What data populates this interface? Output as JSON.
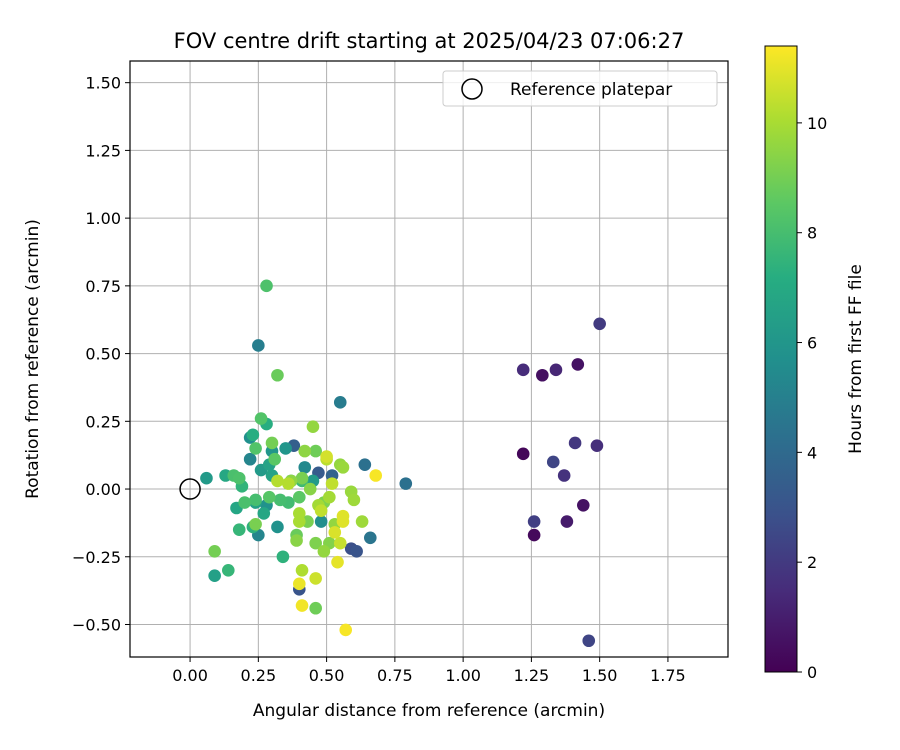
{
  "chart_data": {
    "type": "scatter",
    "title": "FOV centre drift starting at 2025/04/23 07:06:27",
    "xlabel": "Angular distance from reference (arcmin)",
    "ylabel": "Rotation from reference (arcmin)",
    "xlim": [
      -0.22,
      1.97
    ],
    "ylim": [
      -0.62,
      1.58
    ],
    "xticks": [
      0.0,
      0.25,
      0.5,
      0.75,
      1.0,
      1.25,
      1.5,
      1.75
    ],
    "xtick_labels": [
      "0.00",
      "0.25",
      "0.50",
      "0.75",
      "1.00",
      "1.25",
      "1.50",
      "1.75"
    ],
    "yticks": [
      -0.5,
      -0.25,
      0.0,
      0.25,
      0.5,
      0.75,
      1.0,
      1.25,
      1.5
    ],
    "ytick_labels": [
      "−0.50",
      "−0.25",
      "0.00",
      "0.25",
      "0.50",
      "0.75",
      "1.00",
      "1.25",
      "1.50"
    ],
    "grid": true,
    "legend": {
      "position": "top-right",
      "entries": [
        "Reference platepar"
      ]
    },
    "reference_point": {
      "x": 0.0,
      "y": 0.0
    },
    "colorbar": {
      "label": "Hours from first FF file",
      "colormap": "viridis",
      "range": [
        0,
        11.4
      ],
      "ticks": [
        0,
        2,
        4,
        6,
        8,
        10
      ],
      "tick_labels": [
        "0",
        "2",
        "4",
        "6",
        "8",
        "10"
      ]
    },
    "points": [
      {
        "x": 1.22,
        "y": 0.13,
        "c": 0.2
      },
      {
        "x": 1.26,
        "y": -0.17,
        "c": 0.3
      },
      {
        "x": 1.29,
        "y": 0.42,
        "c": 0.5
      },
      {
        "x": 1.42,
        "y": 0.46,
        "c": 0.6
      },
      {
        "x": 1.44,
        "y": -0.06,
        "c": 0.6
      },
      {
        "x": 1.38,
        "y": -0.12,
        "c": 0.9
      },
      {
        "x": 1.34,
        "y": 0.44,
        "c": 1.3
      },
      {
        "x": 1.22,
        "y": 0.44,
        "c": 1.5
      },
      {
        "x": 1.49,
        "y": 0.16,
        "c": 1.6
      },
      {
        "x": 1.37,
        "y": 0.05,
        "c": 1.7
      },
      {
        "x": 1.41,
        "y": 0.17,
        "c": 1.9
      },
      {
        "x": 1.5,
        "y": 0.61,
        "c": 2.0
      },
      {
        "x": 1.26,
        "y": -0.12,
        "c": 2.2
      },
      {
        "x": 1.33,
        "y": 0.1,
        "c": 2.4
      },
      {
        "x": 1.46,
        "y": -0.56,
        "c": 2.4
      },
      {
        "x": 0.59,
        "y": -0.22,
        "c": 2.8
      },
      {
        "x": 0.61,
        "y": -0.23,
        "c": 3.0
      },
      {
        "x": 0.4,
        "y": -0.37,
        "c": 3.0
      },
      {
        "x": 0.47,
        "y": 0.06,
        "c": 3.3
      },
      {
        "x": 0.38,
        "y": 0.16,
        "c": 3.5
      },
      {
        "x": 0.52,
        "y": 0.05,
        "c": 3.7
      },
      {
        "x": 0.79,
        "y": 0.02,
        "c": 4.3
      },
      {
        "x": 0.64,
        "y": 0.09,
        "c": 4.3
      },
      {
        "x": 0.66,
        "y": -0.18,
        "c": 4.5
      },
      {
        "x": 0.55,
        "y": 0.32,
        "c": 4.8
      },
      {
        "x": 0.25,
        "y": 0.53,
        "c": 4.9
      },
      {
        "x": 0.22,
        "y": 0.11,
        "c": 5.2
      },
      {
        "x": 0.25,
        "y": -0.17,
        "c": 5.2
      },
      {
        "x": 0.42,
        "y": 0.08,
        "c": 5.4
      },
      {
        "x": 0.48,
        "y": -0.12,
        "c": 5.6
      },
      {
        "x": 0.22,
        "y": 0.19,
        "c": 5.7
      },
      {
        "x": 0.28,
        "y": -0.06,
        "c": 5.8
      },
      {
        "x": 0.32,
        "y": -0.14,
        "c": 5.8
      },
      {
        "x": 0.3,
        "y": 0.14,
        "c": 6.0
      },
      {
        "x": 0.35,
        "y": 0.15,
        "c": 6.0
      },
      {
        "x": 0.45,
        "y": 0.03,
        "c": 6.2
      },
      {
        "x": 0.26,
        "y": 0.07,
        "c": 6.2
      },
      {
        "x": 0.06,
        "y": 0.04,
        "c": 6.2
      },
      {
        "x": 0.09,
        "y": -0.32,
        "c": 6.5
      },
      {
        "x": 0.24,
        "y": -0.05,
        "c": 6.5
      },
      {
        "x": 0.29,
        "y": 0.09,
        "c": 6.6
      },
      {
        "x": 0.3,
        "y": 0.05,
        "c": 6.6
      },
      {
        "x": 0.27,
        "y": -0.09,
        "c": 6.8
      },
      {
        "x": 0.17,
        "y": -0.07,
        "c": 6.8
      },
      {
        "x": 0.13,
        "y": 0.05,
        "c": 6.9
      },
      {
        "x": 0.23,
        "y": 0.2,
        "c": 7.2
      },
      {
        "x": 0.28,
        "y": 0.24,
        "c": 7.2
      },
      {
        "x": 0.34,
        "y": -0.25,
        "c": 7.4
      },
      {
        "x": 0.37,
        "y": 0.03,
        "c": 7.4
      },
      {
        "x": 0.23,
        "y": -0.14,
        "c": 7.4
      },
      {
        "x": 0.19,
        "y": 0.01,
        "c": 7.5
      },
      {
        "x": 0.18,
        "y": -0.15,
        "c": 7.6
      },
      {
        "x": 0.14,
        "y": -0.3,
        "c": 7.6
      },
      {
        "x": 0.41,
        "y": 0.03,
        "c": 7.8
      },
      {
        "x": 0.36,
        "y": -0.05,
        "c": 7.9
      },
      {
        "x": 0.33,
        "y": -0.04,
        "c": 8.0
      },
      {
        "x": 0.24,
        "y": -0.04,
        "c": 8.0
      },
      {
        "x": 0.2,
        "y": -0.05,
        "c": 8.1
      },
      {
        "x": 0.16,
        "y": 0.05,
        "c": 8.1
      },
      {
        "x": 0.18,
        "y": 0.04,
        "c": 8.2
      },
      {
        "x": 0.28,
        "y": 0.75,
        "c": 8.2
      },
      {
        "x": 0.26,
        "y": 0.26,
        "c": 8.3
      },
      {
        "x": 0.24,
        "y": 0.15,
        "c": 8.3
      },
      {
        "x": 0.29,
        "y": -0.03,
        "c": 8.4
      },
      {
        "x": 0.31,
        "y": 0.11,
        "c": 8.5
      },
      {
        "x": 0.4,
        "y": -0.03,
        "c": 8.5
      },
      {
        "x": 0.32,
        "y": 0.42,
        "c": 8.8
      },
      {
        "x": 0.39,
        "y": -0.17,
        "c": 8.8
      },
      {
        "x": 0.46,
        "y": -0.44,
        "c": 8.9
      },
      {
        "x": 0.46,
        "y": 0.14,
        "c": 8.9
      },
      {
        "x": 0.09,
        "y": -0.23,
        "c": 9.0
      },
      {
        "x": 0.3,
        "y": 0.17,
        "c": 9.0
      },
      {
        "x": 0.24,
        "y": -0.13,
        "c": 9.1
      },
      {
        "x": 0.41,
        "y": 0.04,
        "c": 9.1
      },
      {
        "x": 0.43,
        "y": -0.12,
        "c": 9.1
      },
      {
        "x": 0.46,
        "y": -0.2,
        "c": 9.2
      },
      {
        "x": 0.49,
        "y": -0.05,
        "c": 9.2
      },
      {
        "x": 0.51,
        "y": -0.2,
        "c": 9.3
      },
      {
        "x": 0.39,
        "y": -0.19,
        "c": 9.4
      },
      {
        "x": 0.44,
        "y": 0.0,
        "c": 9.4
      },
      {
        "x": 0.37,
        "y": 0.03,
        "c": 9.5
      },
      {
        "x": 0.42,
        "y": 0.14,
        "c": 9.5
      },
      {
        "x": 0.45,
        "y": 0.23,
        "c": 9.6
      },
      {
        "x": 0.49,
        "y": -0.23,
        "c": 9.6
      },
      {
        "x": 0.53,
        "y": -0.13,
        "c": 9.6
      },
      {
        "x": 0.55,
        "y": 0.09,
        "c": 9.6
      },
      {
        "x": 0.56,
        "y": 0.08,
        "c": 9.7
      },
      {
        "x": 0.59,
        "y": -0.01,
        "c": 9.7
      },
      {
        "x": 0.6,
        "y": -0.04,
        "c": 9.8
      },
      {
        "x": 0.63,
        "y": -0.12,
        "c": 9.8
      },
      {
        "x": 0.51,
        "y": -0.03,
        "c": 9.9
      },
      {
        "x": 0.47,
        "y": -0.06,
        "c": 9.9
      },
      {
        "x": 0.4,
        "y": -0.12,
        "c": 10.0
      },
      {
        "x": 0.4,
        "y": -0.09,
        "c": 10.0
      },
      {
        "x": 0.41,
        "y": -0.3,
        "c": 10.1
      },
      {
        "x": 0.36,
        "y": 0.02,
        "c": 10.2
      },
      {
        "x": 0.32,
        "y": 0.03,
        "c": 10.2
      },
      {
        "x": 0.5,
        "y": 0.11,
        "c": 10.3
      },
      {
        "x": 0.48,
        "y": -0.08,
        "c": 10.4
      },
      {
        "x": 0.52,
        "y": 0.02,
        "c": 10.4
      },
      {
        "x": 0.55,
        "y": -0.2,
        "c": 10.5
      },
      {
        "x": 0.46,
        "y": -0.33,
        "c": 10.6
      },
      {
        "x": 0.5,
        "y": 0.12,
        "c": 10.7
      },
      {
        "x": 0.53,
        "y": -0.16,
        "c": 10.8
      },
      {
        "x": 0.56,
        "y": -0.1,
        "c": 10.9
      },
      {
        "x": 0.56,
        "y": -0.12,
        "c": 10.9
      },
      {
        "x": 0.54,
        "y": -0.27,
        "c": 11.0
      },
      {
        "x": 0.4,
        "y": -0.35,
        "c": 11.1
      },
      {
        "x": 0.41,
        "y": -0.43,
        "c": 11.2
      },
      {
        "x": 0.57,
        "y": -0.52,
        "c": 11.3
      },
      {
        "x": 0.68,
        "y": 0.05,
        "c": 11.3
      }
    ]
  }
}
